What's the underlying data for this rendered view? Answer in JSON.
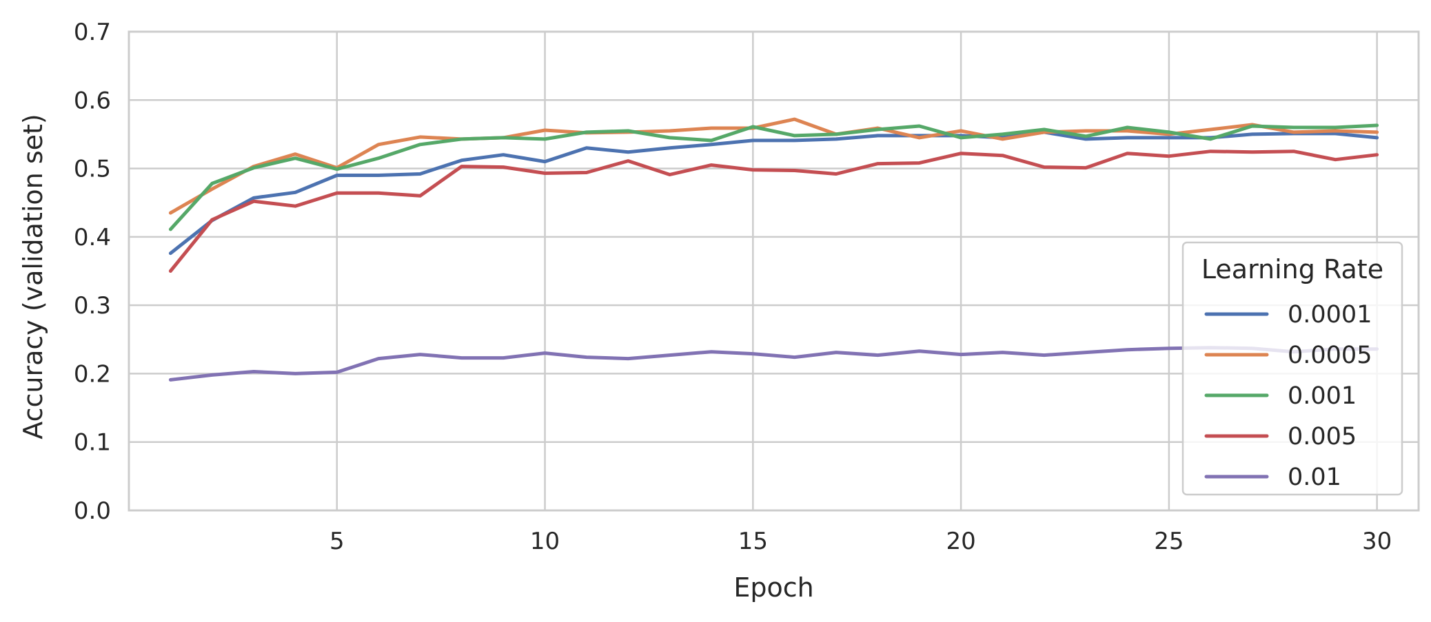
{
  "chart_data": {
    "type": "line",
    "xlabel": "Epoch",
    "ylabel": "Accuracy (validation set)",
    "xlim": [
      0,
      31
    ],
    "ylim": [
      0.0,
      0.7
    ],
    "xticks": [
      5,
      10,
      15,
      20,
      25,
      30
    ],
    "xtick_labels": [
      "5",
      "10",
      "15",
      "20",
      "25",
      "30"
    ],
    "yticks": [
      0.0,
      0.1,
      0.2,
      0.3,
      0.4,
      0.5,
      0.6,
      0.7
    ],
    "ytick_labels": [
      "0.0",
      "0.1",
      "0.2",
      "0.3",
      "0.4",
      "0.5",
      "0.6",
      "0.7"
    ],
    "grid": true,
    "legend": {
      "title": "Learning Rate",
      "placement": "lower-right"
    },
    "x": [
      1,
      2,
      3,
      4,
      5,
      6,
      7,
      8,
      9,
      10,
      11,
      12,
      13,
      14,
      15,
      16,
      17,
      18,
      19,
      20,
      21,
      22,
      23,
      24,
      25,
      26,
      27,
      28,
      29,
      30
    ],
    "series": [
      {
        "name": "0.0001",
        "color": "#4C72B0",
        "values": [
          0.376,
          0.424,
          0.457,
          0.465,
          0.49,
          0.49,
          0.492,
          0.512,
          0.52,
          0.51,
          0.53,
          0.524,
          0.53,
          0.535,
          0.541,
          0.541,
          0.543,
          0.548,
          0.548,
          0.548,
          0.545,
          0.553,
          0.543,
          0.545,
          0.545,
          0.545,
          0.55,
          0.551,
          0.551,
          0.545
        ]
      },
      {
        "name": "0.0005",
        "color": "#DD8452",
        "values": [
          0.435,
          0.47,
          0.503,
          0.521,
          0.501,
          0.535,
          0.546,
          0.543,
          0.545,
          0.556,
          0.552,
          0.553,
          0.555,
          0.559,
          0.559,
          0.572,
          0.55,
          0.559,
          0.545,
          0.555,
          0.543,
          0.553,
          0.555,
          0.555,
          0.55,
          0.557,
          0.564,
          0.553,
          0.555,
          0.553
        ]
      },
      {
        "name": "0.001",
        "color": "#55A868",
        "values": [
          0.411,
          0.478,
          0.501,
          0.515,
          0.499,
          0.515,
          0.535,
          0.543,
          0.545,
          0.543,
          0.553,
          0.555,
          0.545,
          0.541,
          0.561,
          0.548,
          0.55,
          0.557,
          0.562,
          0.545,
          0.55,
          0.557,
          0.547,
          0.56,
          0.553,
          0.543,
          0.562,
          0.56,
          0.56,
          0.563
        ]
      },
      {
        "name": "0.005",
        "color": "#C44E52",
        "values": [
          0.35,
          0.425,
          0.452,
          0.445,
          0.464,
          0.464,
          0.46,
          0.503,
          0.502,
          0.493,
          0.494,
          0.511,
          0.491,
          0.505,
          0.498,
          0.497,
          0.492,
          0.507,
          0.508,
          0.522,
          0.519,
          0.502,
          0.501,
          0.522,
          0.518,
          0.525,
          0.524,
          0.525,
          0.513,
          0.52
        ]
      },
      {
        "name": "0.01",
        "color": "#8172B3",
        "values": [
          0.191,
          0.198,
          0.203,
          0.2,
          0.202,
          0.222,
          0.228,
          0.223,
          0.223,
          0.23,
          0.224,
          0.222,
          0.227,
          0.232,
          0.229,
          0.224,
          0.231,
          0.227,
          0.233,
          0.228,
          0.231,
          0.227,
          0.231,
          0.235,
          0.237,
          0.238,
          0.237,
          0.232,
          0.236,
          0.236
        ]
      }
    ]
  }
}
